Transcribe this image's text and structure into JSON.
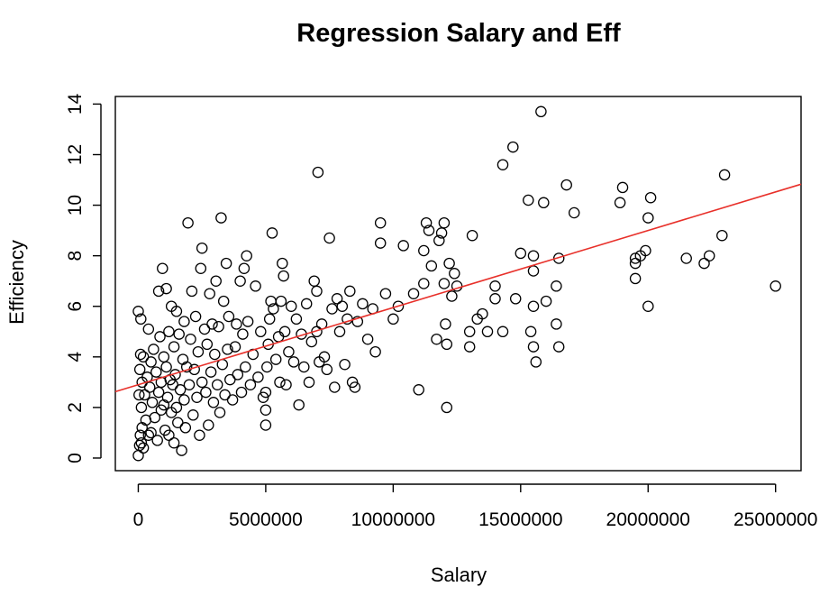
{
  "chart_data": {
    "type": "scatter",
    "title": "Regression Salary and Eff",
    "xlabel": "Salary",
    "ylabel": "Efficiency",
    "xlim": [
      -900000,
      26000000
    ],
    "ylim": [
      -0.5,
      14.3
    ],
    "x_ticks": [
      0,
      5000000,
      10000000,
      15000000,
      20000000,
      25000000
    ],
    "x_tick_labels": [
      "0",
      "5000000",
      "10000000",
      "15000000",
      "20000000",
      "25000000"
    ],
    "y_ticks": [
      0,
      2,
      4,
      6,
      8,
      10,
      12,
      14
    ],
    "y_tick_labels": [
      "0",
      "2",
      "4",
      "6",
      "8",
      "10",
      "12",
      "14"
    ],
    "grid": false,
    "legend": "none",
    "regression_line": {
      "intercept": 2.9,
      "slope": 3.05e-07,
      "color": "#e8302a"
    },
    "points": [
      [
        0,
        0.1
      ],
      [
        50000,
        0.5
      ],
      [
        80000,
        0.9
      ],
      [
        120000,
        0.6
      ],
      [
        150000,
        1.2
      ],
      [
        200000,
        0.4
      ],
      [
        0,
        5.8
      ],
      [
        100000,
        5.5
      ],
      [
        30000,
        2.5
      ],
      [
        60000,
        3.5
      ],
      [
        90000,
        4.1
      ],
      [
        120000,
        2.0
      ],
      [
        150000,
        3.0
      ],
      [
        200000,
        4.0
      ],
      [
        250000,
        2.5
      ],
      [
        300000,
        1.5
      ],
      [
        350000,
        3.2
      ],
      [
        400000,
        5.1
      ],
      [
        400000,
        0.9
      ],
      [
        450000,
        2.8
      ],
      [
        500000,
        3.8
      ],
      [
        500000,
        1.0
      ],
      [
        550000,
        2.2
      ],
      [
        600000,
        4.3
      ],
      [
        650000,
        1.6
      ],
      [
        700000,
        3.4
      ],
      [
        750000,
        0.7
      ],
      [
        800000,
        2.6
      ],
      [
        800000,
        6.6
      ],
      [
        850000,
        4.8
      ],
      [
        900000,
        1.9
      ],
      [
        900000,
        3.0
      ],
      [
        950000,
        7.5
      ],
      [
        1000000,
        2.1
      ],
      [
        1000000,
        4.0
      ],
      [
        1050000,
        1.1
      ],
      [
        1100000,
        3.6
      ],
      [
        1100000,
        6.7
      ],
      [
        1150000,
        2.4
      ],
      [
        1200000,
        0.9
      ],
      [
        1200000,
        5.0
      ],
      [
        1250000,
        3.1
      ],
      [
        1300000,
        1.8
      ],
      [
        1300000,
        6.0
      ],
      [
        1350000,
        2.9
      ],
      [
        1400000,
        4.4
      ],
      [
        1400000,
        0.6
      ],
      [
        1450000,
        3.3
      ],
      [
        1500000,
        2.0
      ],
      [
        1500000,
        5.8
      ],
      [
        1550000,
        1.4
      ],
      [
        1600000,
        4.9
      ],
      [
        1650000,
        2.7
      ],
      [
        1700000,
        0.3
      ],
      [
        1750000,
        3.9
      ],
      [
        1800000,
        2.3
      ],
      [
        1800000,
        5.4
      ],
      [
        1850000,
        1.2
      ],
      [
        1900000,
        3.6
      ],
      [
        1950000,
        9.3
      ],
      [
        2000000,
        2.9
      ],
      [
        2050000,
        4.7
      ],
      [
        2100000,
        6.6
      ],
      [
        2150000,
        1.7
      ],
      [
        2200000,
        3.5
      ],
      [
        2250000,
        5.6
      ],
      [
        2300000,
        2.4
      ],
      [
        2350000,
        4.2
      ],
      [
        2400000,
        0.9
      ],
      [
        2450000,
        7.5
      ],
      [
        2500000,
        3.0
      ],
      [
        2500000,
        8.3
      ],
      [
        2600000,
        5.1
      ],
      [
        2650000,
        2.6
      ],
      [
        2700000,
        4.5
      ],
      [
        2750000,
        1.3
      ],
      [
        2800000,
        6.5
      ],
      [
        2850000,
        3.4
      ],
      [
        2900000,
        5.3
      ],
      [
        2950000,
        2.2
      ],
      [
        3000000,
        4.1
      ],
      [
        3050000,
        7.0
      ],
      [
        3100000,
        2.9
      ],
      [
        3150000,
        5.2
      ],
      [
        3200000,
        1.8
      ],
      [
        3250000,
        9.5
      ],
      [
        3300000,
        3.7
      ],
      [
        3350000,
        6.2
      ],
      [
        3400000,
        2.5
      ],
      [
        3450000,
        7.7
      ],
      [
        3500000,
        4.3
      ],
      [
        3550000,
        5.6
      ],
      [
        3600000,
        3.1
      ],
      [
        3700000,
        2.3
      ],
      [
        3800000,
        4.4
      ],
      [
        3850000,
        5.3
      ],
      [
        3900000,
        3.3
      ],
      [
        4000000,
        7.0
      ],
      [
        4050000,
        2.6
      ],
      [
        4100000,
        4.9
      ],
      [
        4150000,
        7.5
      ],
      [
        4200000,
        3.6
      ],
      [
        4250000,
        8.0
      ],
      [
        4300000,
        5.4
      ],
      [
        4400000,
        2.9
      ],
      [
        4500000,
        4.1
      ],
      [
        4600000,
        6.8
      ],
      [
        4700000,
        3.2
      ],
      [
        4800000,
        5.0
      ],
      [
        4900000,
        2.4
      ],
      [
        5000000,
        1.3
      ],
      [
        5000000,
        1.9
      ],
      [
        5000000,
        2.6
      ],
      [
        5050000,
        3.6
      ],
      [
        5100000,
        4.5
      ],
      [
        5150000,
        5.5
      ],
      [
        5200000,
        6.2
      ],
      [
        5250000,
        8.9
      ],
      [
        5300000,
        5.9
      ],
      [
        5400000,
        3.9
      ],
      [
        5500000,
        4.8
      ],
      [
        5550000,
        3.0
      ],
      [
        5600000,
        6.2
      ],
      [
        5650000,
        7.7
      ],
      [
        5700000,
        7.2
      ],
      [
        5750000,
        5.0
      ],
      [
        5800000,
        2.9
      ],
      [
        5900000,
        4.2
      ],
      [
        6000000,
        6.0
      ],
      [
        6100000,
        3.8
      ],
      [
        6200000,
        5.5
      ],
      [
        6300000,
        2.1
      ],
      [
        6400000,
        4.9
      ],
      [
        6500000,
        3.6
      ],
      [
        6600000,
        6.1
      ],
      [
        6700000,
        3.0
      ],
      [
        6800000,
        4.6
      ],
      [
        6900000,
        7.0
      ],
      [
        7000000,
        5.0
      ],
      [
        7000000,
        6.6
      ],
      [
        7050000,
        11.3
      ],
      [
        7100000,
        3.8
      ],
      [
        7200000,
        5.3
      ],
      [
        7300000,
        4.0
      ],
      [
        7400000,
        3.5
      ],
      [
        7500000,
        8.7
      ],
      [
        7600000,
        5.9
      ],
      [
        7700000,
        2.8
      ],
      [
        7800000,
        6.3
      ],
      [
        7900000,
        5.0
      ],
      [
        8000000,
        6.0
      ],
      [
        8100000,
        3.7
      ],
      [
        8200000,
        5.5
      ],
      [
        8300000,
        6.6
      ],
      [
        8400000,
        3.0
      ],
      [
        8500000,
        2.8
      ],
      [
        8600000,
        5.4
      ],
      [
        8800000,
        6.1
      ],
      [
        9000000,
        4.7
      ],
      [
        9200000,
        5.9
      ],
      [
        9300000,
        4.2
      ],
      [
        9500000,
        9.3
      ],
      [
        9500000,
        8.5
      ],
      [
        9700000,
        6.5
      ],
      [
        10000000,
        5.5
      ],
      [
        10200000,
        6.0
      ],
      [
        10400000,
        8.4
      ],
      [
        10800000,
        6.5
      ],
      [
        11000000,
        2.7
      ],
      [
        11200000,
        6.9
      ],
      [
        11200000,
        8.2
      ],
      [
        11300000,
        9.3
      ],
      [
        11400000,
        9.0
      ],
      [
        11500000,
        7.6
      ],
      [
        11700000,
        4.7
      ],
      [
        11800000,
        8.6
      ],
      [
        11900000,
        8.9
      ],
      [
        12000000,
        9.3
      ],
      [
        12000000,
        6.9
      ],
      [
        12050000,
        5.3
      ],
      [
        12100000,
        4.5
      ],
      [
        12100000,
        2.0
      ],
      [
        12200000,
        7.7
      ],
      [
        12300000,
        6.4
      ],
      [
        12400000,
        7.3
      ],
      [
        12500000,
        6.8
      ],
      [
        13000000,
        4.4
      ],
      [
        13000000,
        5.0
      ],
      [
        13100000,
        8.8
      ],
      [
        13300000,
        5.5
      ],
      [
        13500000,
        5.7
      ],
      [
        13700000,
        5.0
      ],
      [
        14000000,
        6.8
      ],
      [
        14000000,
        6.3
      ],
      [
        14300000,
        5.0
      ],
      [
        14300000,
        11.6
      ],
      [
        14700000,
        12.3
      ],
      [
        14800000,
        6.3
      ],
      [
        15000000,
        8.1
      ],
      [
        15300000,
        10.2
      ],
      [
        15400000,
        5.0
      ],
      [
        15500000,
        8.0
      ],
      [
        15500000,
        7.4
      ],
      [
        15500000,
        6.0
      ],
      [
        15500000,
        4.4
      ],
      [
        15600000,
        3.8
      ],
      [
        15800000,
        13.7
      ],
      [
        15900000,
        10.1
      ],
      [
        16000000,
        6.2
      ],
      [
        16400000,
        6.8
      ],
      [
        16400000,
        5.3
      ],
      [
        16500000,
        4.4
      ],
      [
        16500000,
        7.9
      ],
      [
        16800000,
        10.8
      ],
      [
        17100000,
        9.7
      ],
      [
        18900000,
        10.1
      ],
      [
        19000000,
        10.7
      ],
      [
        19500000,
        7.9
      ],
      [
        19500000,
        7.7
      ],
      [
        19500000,
        7.1
      ],
      [
        19700000,
        8.0
      ],
      [
        19900000,
        8.2
      ],
      [
        20000000,
        9.5
      ],
      [
        20000000,
        6.0
      ],
      [
        20100000,
        10.3
      ],
      [
        21500000,
        7.9
      ],
      [
        22200000,
        7.7
      ],
      [
        22400000,
        8.0
      ],
      [
        22900000,
        8.8
      ],
      [
        23000000,
        11.2
      ],
      [
        25000000,
        6.8
      ]
    ]
  }
}
